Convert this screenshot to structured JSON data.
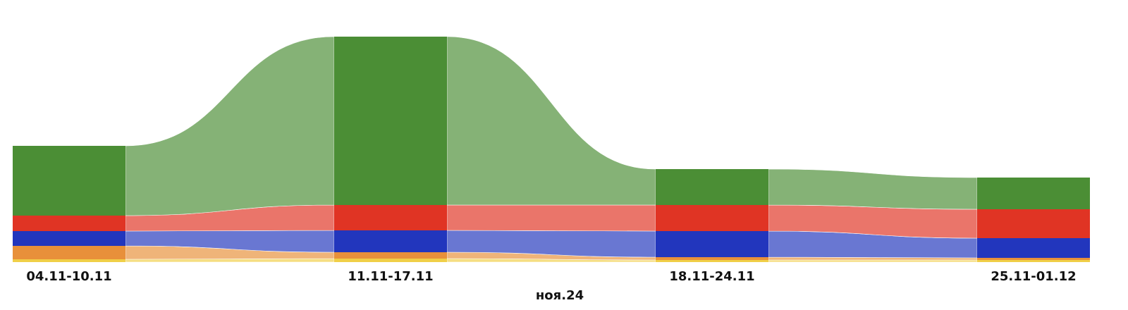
{
  "chart_data": {
    "type": "ribbon",
    "x_label": "ноя.24",
    "categories": [
      "04.11-10.11",
      "11.11-17.11",
      "18.11-24.11",
      "25.11-01.12"
    ],
    "series": [
      {
        "color": "#f0cf48",
        "values": [
          4,
          5,
          3,
          3
        ]
      },
      {
        "color": "#e8903a",
        "values": [
          19,
          9,
          4,
          3
        ]
      },
      {
        "color": "#2236bd",
        "values": [
          21,
          31,
          37,
          28
        ]
      },
      {
        "color": "#e03424",
        "values": [
          22,
          36,
          37,
          41
        ]
      },
      {
        "color": "#4b8e35",
        "values": [
          99,
          239,
          51,
          45
        ]
      }
    ],
    "ylim": [
      0,
      330
    ]
  }
}
